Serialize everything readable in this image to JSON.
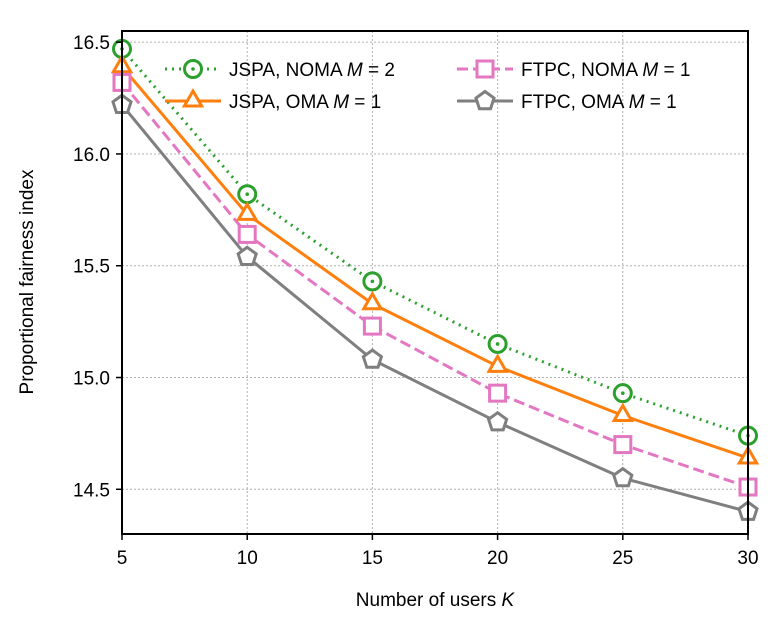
{
  "chart_data": {
    "type": "line",
    "title": "",
    "xlabel": "Number of users",
    "xlabel_var": "K",
    "ylabel": "Proportional fairness index",
    "x": [
      5,
      10,
      15,
      20,
      25,
      30
    ],
    "xlim": [
      5,
      30
    ],
    "ylim": [
      14.3,
      16.55
    ],
    "xticks": [
      "5",
      "10",
      "15",
      "20",
      "25",
      "30"
    ],
    "yticks": [
      "14.5",
      "15.0",
      "15.5",
      "16.0",
      "16.5"
    ],
    "grid": true,
    "legend_position": "top",
    "series": [
      {
        "name_prefix": "JSPA, NOMA",
        "name_var": "M",
        "name_suffix": " = 2",
        "color": "#2ca02c",
        "linestyle": "dotted",
        "marker": "circle",
        "values": [
          16.47,
          15.82,
          15.43,
          15.15,
          14.93,
          14.74
        ]
      },
      {
        "name_prefix": "JSPA, OMA",
        "name_var": "M",
        "name_suffix": " = 1",
        "color": "#ff7f0e",
        "linestyle": "solid",
        "marker": "triangle",
        "values": [
          16.39,
          15.73,
          15.33,
          15.05,
          14.83,
          14.64
        ]
      },
      {
        "name_prefix": "FTPC, NOMA",
        "name_var": "M",
        "name_suffix": " = 1",
        "color": "#e377c2",
        "linestyle": "dashed",
        "marker": "square",
        "values": [
          16.32,
          15.64,
          15.23,
          14.93,
          14.7,
          14.51
        ]
      },
      {
        "name_prefix": "FTPC, OMA",
        "name_var": "M",
        "name_suffix": " = 1",
        "color": "#7f7f7f",
        "linestyle": "solid",
        "marker": "pentagon",
        "values": [
          16.22,
          15.54,
          15.08,
          14.8,
          14.55,
          14.4
        ]
      }
    ]
  }
}
